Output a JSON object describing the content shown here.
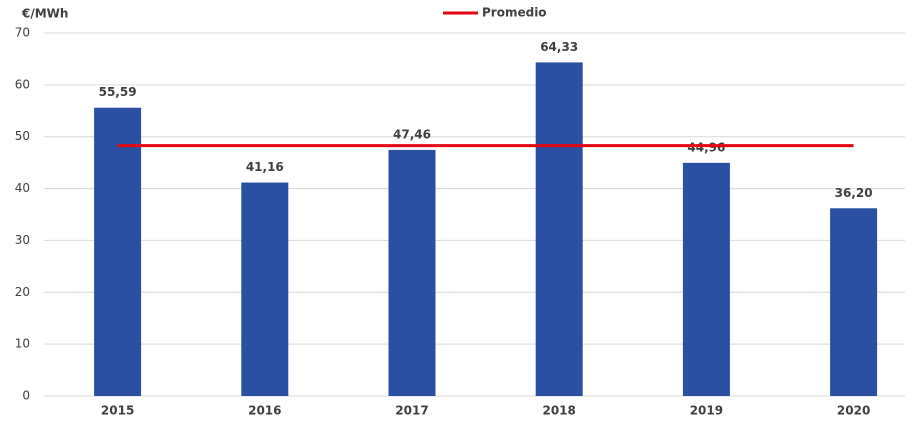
{
  "chart_data": {
    "type": "bar",
    "y_label": "€/MWh",
    "categories": [
      "2015",
      "2016",
      "2017",
      "2018",
      "2019",
      "2020"
    ],
    "values": [
      55.59,
      41.16,
      47.46,
      64.33,
      44.96,
      36.2
    ],
    "value_labels": [
      "55,59",
      "41,16",
      "47,46",
      "64,33",
      "44,96",
      "36,20"
    ],
    "color": "#2a4fa3",
    "lines": [
      {
        "name": "Promedio",
        "color": "#e30613",
        "values": [
          48.28,
          48.28,
          48.28,
          48.28,
          48.28,
          48.28
        ]
      }
    ],
    "ylim": [
      0,
      70
    ],
    "yticks": [
      0,
      10,
      20,
      30,
      40,
      50,
      60,
      70
    ],
    "grid": true,
    "legend": "top"
  }
}
